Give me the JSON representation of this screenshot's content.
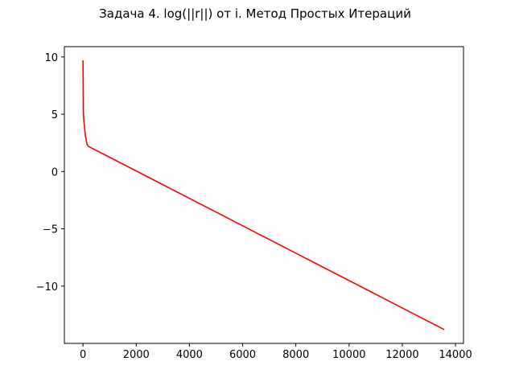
{
  "chart_data": {
    "type": "line",
    "title": "Задача 4. log(||r||) от i. Метод Простых Итераций",
    "xlabel": "",
    "ylabel": "",
    "xlim": [
      -700,
      14300
    ],
    "ylim": [
      -15.0,
      10.9
    ],
    "xticks": [
      0,
      2000,
      4000,
      6000,
      8000,
      10000,
      12000,
      14000
    ],
    "xtick_labels": [
      "0",
      "2000",
      "4000",
      "6000",
      "8000",
      "10000",
      "12000",
      "14000"
    ],
    "yticks": [
      10,
      5,
      0,
      -5,
      -10
    ],
    "ytick_labels": [
      "10",
      "5",
      "0",
      "−5",
      "−10"
    ],
    "grid": false,
    "series": [
      {
        "color": "#ff0000",
        "x": [
          0,
          5,
          15,
          30,
          60,
          100,
          150,
          200,
          13580
        ],
        "y": [
          9.7,
          8.0,
          5.2,
          4.5,
          3.8,
          3.0,
          2.4,
          2.2,
          -13.8
        ]
      }
    ]
  }
}
